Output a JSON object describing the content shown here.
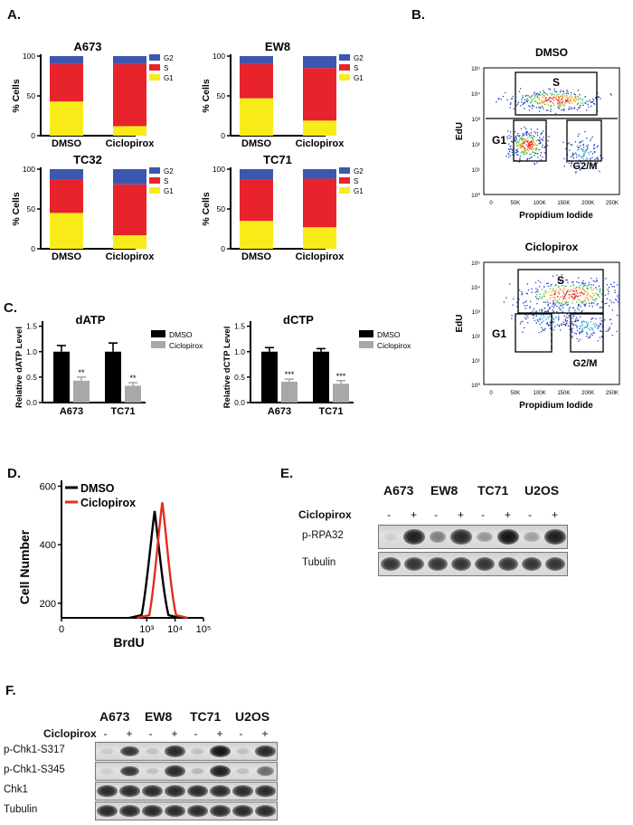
{
  "panels": {
    "A": "A.",
    "B": "B.",
    "C": "C.",
    "D": "D.",
    "E": "E.",
    "F": "F."
  },
  "colors": {
    "g2": "#3b57b0",
    "s": "#e8232b",
    "g1": "#f7ec1a",
    "black": "#000000",
    "gray": "#a8a8a8",
    "dmso_line": "#000000",
    "cic_line": "#e0301e"
  },
  "chart_data": [
    {
      "id": "A673",
      "type": "bar",
      "title": "A673",
      "ylabel": "% Cells",
      "categories": [
        "DMSO",
        "Ciclopirox"
      ],
      "ylim": [
        0,
        100
      ],
      "yticks": [
        "0",
        "50",
        "100"
      ],
      "series": [
        {
          "name": "G1",
          "values": [
            43,
            12
          ]
        },
        {
          "name": "S",
          "values": [
            47,
            78
          ]
        },
        {
          "name": "G2",
          "values": [
            10,
            10
          ]
        }
      ],
      "legend": [
        "G2",
        "S",
        "G1"
      ]
    },
    {
      "id": "EW8",
      "type": "bar",
      "title": "EW8",
      "ylabel": "% Cells",
      "categories": [
        "DMSO",
        "Ciclopirox"
      ],
      "ylim": [
        0,
        100
      ],
      "yticks": [
        "0",
        "50",
        "100"
      ],
      "series": [
        {
          "name": "G1",
          "values": [
            47,
            19
          ]
        },
        {
          "name": "S",
          "values": [
            43,
            66
          ]
        },
        {
          "name": "G2",
          "values": [
            10,
            15
          ]
        }
      ],
      "legend": [
        "G2",
        "S",
        "G1"
      ]
    },
    {
      "id": "TC32",
      "type": "bar",
      "title": "TC32",
      "ylabel": "% Cells",
      "categories": [
        "DMSO",
        "Ciclopirox"
      ],
      "ylim": [
        0,
        100
      ],
      "yticks": [
        "0",
        "50",
        "100"
      ],
      "series": [
        {
          "name": "G1",
          "values": [
            45,
            17
          ]
        },
        {
          "name": "S",
          "values": [
            42,
            64
          ]
        },
        {
          "name": "G2",
          "values": [
            13,
            19
          ]
        }
      ],
      "legend": [
        "G2",
        "S",
        "G1"
      ]
    },
    {
      "id": "TC71",
      "type": "bar",
      "title": "TC71",
      "ylabel": "% Cells",
      "categories": [
        "DMSO",
        "Ciclopirox"
      ],
      "ylim": [
        0,
        100
      ],
      "yticks": [
        "0",
        "50",
        "100"
      ],
      "series": [
        {
          "name": "G1",
          "values": [
            35,
            27
          ]
        },
        {
          "name": "S",
          "values": [
            52,
            61
          ]
        },
        {
          "name": "G2",
          "values": [
            13,
            12
          ]
        }
      ],
      "legend": [
        "G2",
        "S",
        "G1"
      ]
    },
    {
      "id": "dATP",
      "type": "bar",
      "title": "dATP",
      "ylabel": "Relative dATP Level",
      "categories": [
        "A673",
        "TC71"
      ],
      "ylim": [
        0,
        1.6
      ],
      "yticks": [
        "0.0",
        "0.5",
        "1.0",
        "1.5"
      ],
      "series": [
        {
          "name": "DMSO",
          "values": [
            1.0,
            1.0
          ],
          "errors": [
            0.12,
            0.17
          ],
          "sig": [
            "",
            ""
          ]
        },
        {
          "name": "Ciclopirox",
          "values": [
            0.43,
            0.33
          ],
          "errors": [
            0.07,
            0.06
          ],
          "sig": [
            "**",
            "**"
          ]
        }
      ]
    },
    {
      "id": "dCTP",
      "type": "bar",
      "title": "dCTP",
      "ylabel": "Relative dCTP Level",
      "categories": [
        "A673",
        "TC71"
      ],
      "ylim": [
        0,
        1.6
      ],
      "yticks": [
        "0.0",
        "0.5",
        "1.0",
        "1.5"
      ],
      "series": [
        {
          "name": "DMSO",
          "values": [
            1.0,
            1.0
          ],
          "errors": [
            0.08,
            0.06
          ],
          "sig": [
            "",
            ""
          ]
        },
        {
          "name": "Ciclopirox",
          "values": [
            0.41,
            0.37
          ],
          "errors": [
            0.05,
            0.06
          ],
          "sig": [
            "***",
            "***"
          ]
        }
      ]
    },
    {
      "id": "BrdU",
      "type": "line",
      "xlabel": "BrdU",
      "ylabel": "Cell Number",
      "yticks": [
        "200",
        "400",
        "600"
      ],
      "xticks": [
        "0",
        "10³",
        "10⁴",
        "10⁵"
      ],
      "ylim": [
        150,
        620
      ],
      "series": [
        {
          "name": "DMSO",
          "peak_x": 3.28,
          "peak_y": 515
        },
        {
          "name": "Ciclopirox",
          "peak_x": 3.55,
          "peak_y": 545
        }
      ]
    }
  ],
  "flow": {
    "dmso": {
      "title": "DMSO",
      "ylabel": "EdU",
      "xlabel": "Propidium Iodide",
      "gates": {
        "s": "S",
        "g1": "G1",
        "g2m": "G2/M"
      }
    },
    "cic": {
      "title": "Ciclopirox",
      "ylabel": "EdU",
      "xlabel": "Propidium Iodide",
      "gates": {
        "s": "S",
        "g1": "G1",
        "g2m": "G2/M"
      }
    },
    "yticks": [
      "10⁰",
      "10¹",
      "10²",
      "10³",
      "10⁴",
      "10⁵"
    ],
    "xticks": [
      "0",
      "50K",
      "100K",
      "150K",
      "200K",
      "250K"
    ]
  },
  "blotE": {
    "lanes": [
      "A673",
      "EW8",
      "TC71",
      "U2OS"
    ],
    "treatment_label": "Ciclopirox",
    "pm": [
      "-",
      "+",
      "-",
      "+",
      "-",
      "+",
      "-",
      "+"
    ],
    "rows": [
      {
        "label": "p-RPA32",
        "intensity": [
          0.05,
          0.9,
          0.45,
          0.85,
          0.35,
          0.95,
          0.3,
          0.9
        ]
      },
      {
        "label": "Tubulin",
        "intensity": [
          0.8,
          0.8,
          0.8,
          0.8,
          0.8,
          0.8,
          0.8,
          0.8
        ]
      }
    ]
  },
  "blotF": {
    "lanes": [
      "A673",
      "EW8",
      "TC71",
      "U2OS"
    ],
    "treatment_label": "Ciclopirox",
    "pm": [
      "-",
      "+",
      "-",
      "+",
      "-",
      "+",
      "-",
      "+"
    ],
    "rows": [
      {
        "label": "p-Chk1-S317",
        "intensity": [
          0.1,
          0.8,
          0.15,
          0.85,
          0.15,
          0.95,
          0.15,
          0.85
        ]
      },
      {
        "label": "p-Chk1-S345",
        "intensity": [
          0.05,
          0.8,
          0.15,
          0.85,
          0.2,
          0.9,
          0.15,
          0.55
        ]
      },
      {
        "label": "Chk1",
        "intensity": [
          0.85,
          0.85,
          0.85,
          0.85,
          0.85,
          0.85,
          0.85,
          0.85
        ]
      },
      {
        "label": "Tubulin",
        "intensity": [
          0.85,
          0.85,
          0.85,
          0.85,
          0.85,
          0.85,
          0.85,
          0.85
        ]
      }
    ]
  }
}
